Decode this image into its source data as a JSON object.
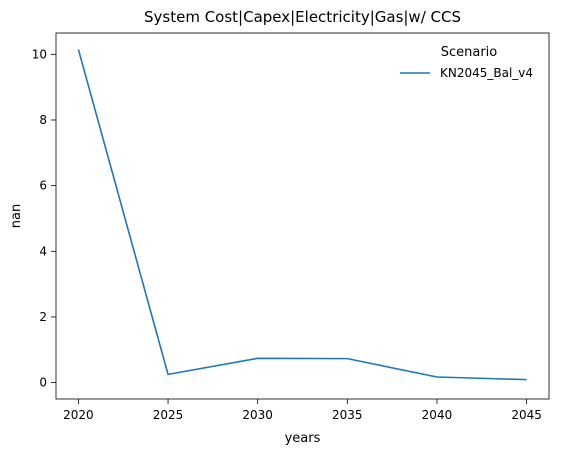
{
  "chart_data": {
    "type": "line",
    "title": "System Cost|Capex|Electricity|Gas|w/ CCS",
    "xlabel": "years",
    "ylabel": "nan",
    "x": [
      2020,
      2025,
      2030,
      2035,
      2040,
      2045
    ],
    "xticks": [
      "2020",
      "2025",
      "2030",
      "2035",
      "2040",
      "2045"
    ],
    "yticks": [
      "0",
      "2",
      "4",
      "6",
      "8",
      "10"
    ],
    "xlim": [
      2018.75,
      2046.25
    ],
    "ylim": [
      -0.5,
      10.65
    ],
    "grid": false,
    "legend": {
      "title": "Scenario",
      "placement": "top-right"
    },
    "series": [
      {
        "name": "KN2045_Bal_v4",
        "color": "#1f77b4",
        "values": [
          10.15,
          0.25,
          0.74,
          0.73,
          0.17,
          0.09
        ]
      }
    ]
  }
}
